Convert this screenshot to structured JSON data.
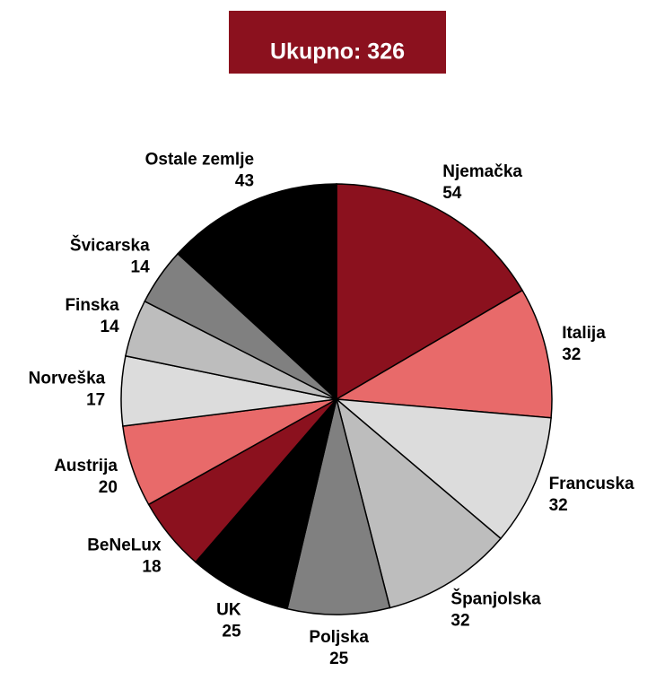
{
  "chart_data": {
    "type": "pie",
    "title": "Ukupno: 326",
    "categories": [
      "Njemačka",
      "Italija",
      "Francuska",
      "Španjolska",
      "Poljska",
      "UK",
      "BeNeLux",
      "Austrija",
      "Norveška",
      "Finska",
      "Švicarska",
      "Ostale zemlje"
    ],
    "values": [
      54,
      32,
      32,
      32,
      25,
      25,
      18,
      20,
      17,
      14,
      14,
      43
    ],
    "colors": [
      "#8b111e",
      "#e86a6a",
      "#dcdcdc",
      "#bdbdbd",
      "#808080",
      "#000000",
      "#8b111e",
      "#e86a6a",
      "#dcdcdc",
      "#bdbdbd",
      "#808080",
      "#000000"
    ],
    "title_color": "#8b111e"
  }
}
